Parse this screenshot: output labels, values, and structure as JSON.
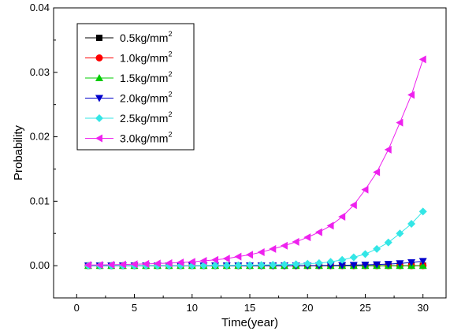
{
  "chart_data": {
    "type": "line",
    "xlabel": "Time(year)",
    "ylabel": "Probability",
    "xlim": [
      -2,
      32
    ],
    "ylim": [
      -0.005,
      0.04
    ],
    "xticks": [
      0,
      5,
      10,
      15,
      20,
      25,
      30
    ],
    "xtick_labels": [
      "0",
      "5",
      "10",
      "15",
      "20",
      "25",
      "30"
    ],
    "yticks": [
      0.0,
      0.01,
      0.02,
      0.03,
      0.04
    ],
    "ytick_labels": [
      "0.00",
      "0.01",
      "0.02",
      "0.03",
      "0.04"
    ],
    "grid": false,
    "legend_position": "top-left",
    "x": [
      1,
      2,
      3,
      4,
      5,
      6,
      7,
      8,
      9,
      10,
      11,
      12,
      13,
      14,
      15,
      16,
      17,
      18,
      19,
      20,
      21,
      22,
      23,
      24,
      25,
      26,
      27,
      28,
      29,
      30
    ],
    "series": [
      {
        "name": "0.5kg/mm",
        "name_sup": "2",
        "color": "#000000",
        "marker": "square",
        "values": [
          0,
          0,
          0,
          0,
          0,
          0,
          0,
          0,
          0,
          0,
          0,
          0,
          0,
          0,
          0,
          0,
          0,
          0,
          0,
          0,
          0,
          0,
          0,
          0,
          0,
          0,
          0,
          0,
          0,
          0
        ]
      },
      {
        "name": "1.0kg/mm",
        "name_sup": "2",
        "color": "#ff0000",
        "marker": "circle",
        "values": [
          0,
          0,
          0,
          0,
          0,
          0,
          0,
          0,
          0,
          0,
          0,
          0,
          0,
          0,
          0,
          0,
          0,
          0,
          0,
          0,
          0,
          0,
          0,
          0,
          0,
          0,
          0,
          0,
          0,
          0
        ]
      },
      {
        "name": "1.5kg/mm",
        "name_sup": "2",
        "color": "#00cc00",
        "marker": "triangle-up",
        "values": [
          0,
          0,
          0,
          0,
          0,
          0,
          0,
          0,
          0,
          0,
          0,
          0,
          0,
          0,
          0,
          0,
          0,
          0,
          0,
          0,
          0,
          0,
          0,
          0,
          0,
          0,
          0,
          0,
          0,
          0
        ]
      },
      {
        "name": "2.0kg/mm",
        "name_sup": "2",
        "color": "#0000cc",
        "marker": "triangle-down",
        "values": [
          0,
          0,
          0,
          0,
          0,
          0,
          0,
          0,
          0,
          0,
          0,
          0,
          0,
          0,
          0,
          0,
          0,
          0,
          1e-05,
          2e-05,
          3e-05,
          4e-05,
          6e-05,
          9e-05,
          0.00013,
          0.00018,
          0.00025,
          0.00035,
          0.0005,
          0.0007
        ]
      },
      {
        "name": "2.5kg/mm",
        "name_sup": "2",
        "color": "#33e6e6",
        "marker": "diamond",
        "values": [
          0,
          0,
          0,
          0,
          0,
          0,
          0,
          0,
          1e-05,
          2e-05,
          3e-05,
          4e-05,
          5e-05,
          6e-05,
          8e-05,
          0.0001,
          0.00013,
          0.00017,
          0.00023,
          0.0003,
          0.0004,
          0.0006,
          0.0009,
          0.0013,
          0.0018,
          0.0026,
          0.0036,
          0.005,
          0.0065,
          0.0084
        ]
      },
      {
        "name": "3.0kg/mm",
        "name_sup": "2",
        "color": "#ee22ee",
        "marker": "triangle-left",
        "values": [
          0.0001,
          0.00012,
          0.00015,
          0.00018,
          0.00022,
          0.00027,
          0.00033,
          0.0004,
          0.0005,
          0.0006,
          0.00075,
          0.0009,
          0.0011,
          0.0014,
          0.0017,
          0.0021,
          0.0026,
          0.0031,
          0.0037,
          0.0044,
          0.0052,
          0.0062,
          0.0076,
          0.0094,
          0.0118,
          0.0145,
          0.018,
          0.0222,
          0.0265,
          0.032
        ]
      }
    ]
  }
}
